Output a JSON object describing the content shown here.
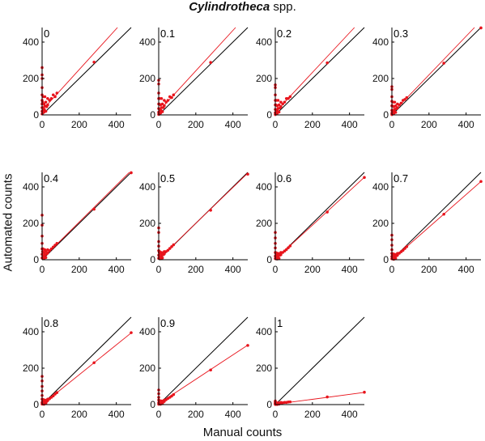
{
  "figure": {
    "title_genus": "Cylindrotheca",
    "title_rest": " spp.",
    "xlabel": "Manual counts",
    "ylabel": "Automated counts"
  },
  "colors": {
    "fit": "#e8141c",
    "points": "#e8141c",
    "identity": "#000000",
    "axes": "#000000"
  },
  "chart_data": {
    "type": "scatter",
    "xlim": [
      0,
      480
    ],
    "ylim": [
      0,
      480
    ],
    "xticks": [
      0,
      200,
      400
    ],
    "yticks": [
      0,
      200,
      400
    ],
    "grid": false,
    "identity_line": true,
    "panels": [
      {
        "label": "0",
        "fit_slope": 1.12,
        "fit_intercept": 25,
        "points": [
          [
            0,
            260
          ],
          [
            0,
            220
          ],
          [
            0,
            200
          ],
          [
            0,
            150
          ],
          [
            0,
            110
          ],
          [
            0,
            80
          ],
          [
            0,
            60
          ],
          [
            0,
            40
          ],
          [
            0,
            20
          ],
          [
            0,
            5
          ],
          [
            3,
            70
          ],
          [
            5,
            100
          ],
          [
            5,
            40
          ],
          [
            8,
            25
          ],
          [
            10,
            15
          ],
          [
            10,
            60
          ],
          [
            12,
            30
          ],
          [
            15,
            50
          ],
          [
            15,
            100
          ],
          [
            20,
            20
          ],
          [
            20,
            70
          ],
          [
            25,
            45
          ],
          [
            30,
            55
          ],
          [
            30,
            90
          ],
          [
            40,
            80
          ],
          [
            50,
            90
          ],
          [
            60,
            110
          ],
          [
            70,
            100
          ],
          [
            80,
            120
          ],
          [
            280,
            290
          ]
        ]
      },
      {
        "label": "0.1",
        "fit_slope": 1.11,
        "fit_intercept": 20,
        "points": [
          [
            0,
            190
          ],
          [
            0,
            170
          ],
          [
            0,
            120
          ],
          [
            0,
            90
          ],
          [
            0,
            60
          ],
          [
            0,
            35
          ],
          [
            0,
            15
          ],
          [
            0,
            3
          ],
          [
            3,
            60
          ],
          [
            5,
            90
          ],
          [
            5,
            30
          ],
          [
            8,
            20
          ],
          [
            10,
            10
          ],
          [
            10,
            55
          ],
          [
            12,
            25
          ],
          [
            15,
            40
          ],
          [
            15,
            90
          ],
          [
            20,
            18
          ],
          [
            20,
            60
          ],
          [
            25,
            40
          ],
          [
            30,
            50
          ],
          [
            30,
            80
          ],
          [
            40,
            70
          ],
          [
            50,
            80
          ],
          [
            60,
            100
          ],
          [
            70,
            95
          ],
          [
            80,
            110
          ],
          [
            280,
            288
          ]
        ]
      },
      {
        "label": "0.2",
        "fit_slope": 1.09,
        "fit_intercept": 15,
        "points": [
          [
            0,
            165
          ],
          [
            0,
            150
          ],
          [
            0,
            110
          ],
          [
            0,
            80
          ],
          [
            0,
            55
          ],
          [
            0,
            30
          ],
          [
            0,
            12
          ],
          [
            0,
            2
          ],
          [
            3,
            55
          ],
          [
            5,
            80
          ],
          [
            5,
            28
          ],
          [
            8,
            18
          ],
          [
            10,
            9
          ],
          [
            10,
            50
          ],
          [
            12,
            22
          ],
          [
            15,
            35
          ],
          [
            15,
            80
          ],
          [
            20,
            16
          ],
          [
            20,
            55
          ],
          [
            25,
            38
          ],
          [
            30,
            45
          ],
          [
            30,
            70
          ],
          [
            40,
            60
          ],
          [
            50,
            70
          ],
          [
            60,
            90
          ],
          [
            70,
            90
          ],
          [
            80,
            100
          ],
          [
            280,
            286
          ]
        ]
      },
      {
        "label": "0.3",
        "fit_slope": 1.06,
        "fit_intercept": 8,
        "points": [
          [
            0,
            155
          ],
          [
            0,
            140
          ],
          [
            0,
            100
          ],
          [
            0,
            75
          ],
          [
            0,
            50
          ],
          [
            0,
            25
          ],
          [
            0,
            10
          ],
          [
            0,
            2
          ],
          [
            3,
            50
          ],
          [
            5,
            70
          ],
          [
            5,
            25
          ],
          [
            8,
            15
          ],
          [
            10,
            8
          ],
          [
            10,
            45
          ],
          [
            12,
            20
          ],
          [
            15,
            30
          ],
          [
            15,
            70
          ],
          [
            20,
            14
          ],
          [
            20,
            50
          ],
          [
            25,
            35
          ],
          [
            30,
            40
          ],
          [
            30,
            60
          ],
          [
            40,
            55
          ],
          [
            50,
            65
          ],
          [
            60,
            80
          ],
          [
            70,
            85
          ],
          [
            80,
            95
          ],
          [
            280,
            284
          ],
          [
            480,
            478
          ]
        ]
      },
      {
        "label": "0.4",
        "fit_slope": 1.01,
        "fit_intercept": 5,
        "points": [
          [
            0,
            245
          ],
          [
            0,
            190
          ],
          [
            0,
            130
          ],
          [
            0,
            90
          ],
          [
            0,
            60
          ],
          [
            0,
            30
          ],
          [
            0,
            10
          ],
          [
            3,
            45
          ],
          [
            5,
            60
          ],
          [
            5,
            20
          ],
          [
            8,
            12
          ],
          [
            10,
            6
          ],
          [
            10,
            40
          ],
          [
            12,
            18
          ],
          [
            15,
            28
          ],
          [
            15,
            55
          ],
          [
            20,
            12
          ],
          [
            20,
            45
          ],
          [
            25,
            32
          ],
          [
            30,
            38
          ],
          [
            30,
            55
          ],
          [
            40,
            50
          ],
          [
            50,
            60
          ],
          [
            60,
            70
          ],
          [
            70,
            80
          ],
          [
            80,
            90
          ],
          [
            280,
            278
          ],
          [
            480,
            478
          ]
        ]
      },
      {
        "label": "0.5",
        "fit_slope": 0.985,
        "fit_intercept": 3,
        "points": [
          [
            0,
            175
          ],
          [
            0,
            150
          ],
          [
            0,
            100
          ],
          [
            0,
            75
          ],
          [
            0,
            50
          ],
          [
            0,
            25
          ],
          [
            0,
            8
          ],
          [
            3,
            40
          ],
          [
            5,
            45
          ],
          [
            5,
            18
          ],
          [
            8,
            10
          ],
          [
            10,
            5
          ],
          [
            10,
            35
          ],
          [
            12,
            15
          ],
          [
            15,
            25
          ],
          [
            15,
            40
          ],
          [
            20,
            10
          ],
          [
            20,
            35
          ],
          [
            25,
            28
          ],
          [
            30,
            32
          ],
          [
            30,
            45
          ],
          [
            40,
            45
          ],
          [
            50,
            52
          ],
          [
            60,
            62
          ],
          [
            70,
            72
          ],
          [
            80,
            82
          ],
          [
            280,
            272
          ],
          [
            480,
            470
          ]
        ]
      },
      {
        "label": "0.6",
        "fit_slope": 0.94,
        "fit_intercept": 2,
        "points": [
          [
            0,
            150
          ],
          [
            0,
            120
          ],
          [
            0,
            90
          ],
          [
            0,
            65
          ],
          [
            0,
            40
          ],
          [
            0,
            20
          ],
          [
            0,
            6
          ],
          [
            3,
            35
          ],
          [
            5,
            38
          ],
          [
            5,
            15
          ],
          [
            8,
            8
          ],
          [
            10,
            4
          ],
          [
            10,
            30
          ],
          [
            12,
            12
          ],
          [
            15,
            22
          ],
          [
            15,
            35
          ],
          [
            20,
            8
          ],
          [
            20,
            30
          ],
          [
            25,
            25
          ],
          [
            30,
            28
          ],
          [
            30,
            40
          ],
          [
            40,
            40
          ],
          [
            50,
            48
          ],
          [
            60,
            56
          ],
          [
            70,
            66
          ],
          [
            80,
            76
          ],
          [
            280,
            262
          ],
          [
            480,
            452
          ]
        ]
      },
      {
        "label": "0.7",
        "fit_slope": 0.895,
        "fit_intercept": 0,
        "points": [
          [
            0,
            135
          ],
          [
            0,
            110
          ],
          [
            0,
            80
          ],
          [
            0,
            55
          ],
          [
            0,
            35
          ],
          [
            0,
            18
          ],
          [
            0,
            5
          ],
          [
            3,
            30
          ],
          [
            5,
            33
          ],
          [
            5,
            12
          ],
          [
            8,
            7
          ],
          [
            10,
            3
          ],
          [
            10,
            26
          ],
          [
            12,
            10
          ],
          [
            15,
            19
          ],
          [
            15,
            30
          ],
          [
            20,
            7
          ],
          [
            20,
            26
          ],
          [
            25,
            22
          ],
          [
            30,
            25
          ],
          [
            30,
            35
          ],
          [
            40,
            36
          ],
          [
            50,
            44
          ],
          [
            60,
            52
          ],
          [
            70,
            62
          ],
          [
            80,
            72
          ],
          [
            280,
            250
          ],
          [
            480,
            430
          ]
        ]
      },
      {
        "label": "0.8",
        "fit_slope": 0.82,
        "fit_intercept": 0,
        "points": [
          [
            0,
            155
          ],
          [
            0,
            130
          ],
          [
            0,
            100
          ],
          [
            0,
            75
          ],
          [
            0,
            50
          ],
          [
            0,
            30
          ],
          [
            0,
            12
          ],
          [
            0,
            3
          ],
          [
            3,
            25
          ],
          [
            5,
            28
          ],
          [
            5,
            10
          ],
          [
            8,
            6
          ],
          [
            10,
            2
          ],
          [
            10,
            22
          ],
          [
            12,
            8
          ],
          [
            15,
            16
          ],
          [
            15,
            25
          ],
          [
            20,
            6
          ],
          [
            20,
            22
          ],
          [
            25,
            18
          ],
          [
            30,
            22
          ],
          [
            30,
            30
          ],
          [
            40,
            32
          ],
          [
            50,
            40
          ],
          [
            60,
            48
          ],
          [
            70,
            58
          ],
          [
            80,
            66
          ],
          [
            280,
            230
          ],
          [
            480,
            395
          ]
        ]
      },
      {
        "label": "0.9",
        "fit_slope": 0.67,
        "fit_intercept": 5,
        "points": [
          [
            0,
            80
          ],
          [
            0,
            60
          ],
          [
            0,
            40
          ],
          [
            0,
            25
          ],
          [
            0,
            10
          ],
          [
            0,
            2
          ],
          [
            3,
            20
          ],
          [
            5,
            22
          ],
          [
            5,
            8
          ],
          [
            8,
            5
          ],
          [
            10,
            2
          ],
          [
            10,
            18
          ],
          [
            12,
            6
          ],
          [
            15,
            12
          ],
          [
            15,
            20
          ],
          [
            20,
            5
          ],
          [
            20,
            18
          ],
          [
            25,
            15
          ],
          [
            30,
            18
          ],
          [
            30,
            25
          ],
          [
            40,
            27
          ],
          [
            50,
            34
          ],
          [
            60,
            40
          ],
          [
            70,
            47
          ],
          [
            80,
            55
          ],
          [
            280,
            190
          ],
          [
            480,
            325
          ]
        ]
      },
      {
        "label": "1",
        "fit_slope": 0.135,
        "fit_intercept": 2,
        "points": [
          [
            0,
            20
          ],
          [
            0,
            15
          ],
          [
            0,
            10
          ],
          [
            0,
            6
          ],
          [
            0,
            3
          ],
          [
            0,
            1
          ],
          [
            3,
            8
          ],
          [
            5,
            10
          ],
          [
            5,
            4
          ],
          [
            8,
            3
          ],
          [
            10,
            1
          ],
          [
            10,
            8
          ],
          [
            12,
            3
          ],
          [
            15,
            6
          ],
          [
            15,
            10
          ],
          [
            20,
            3
          ],
          [
            20,
            8
          ],
          [
            25,
            7
          ],
          [
            30,
            8
          ],
          [
            30,
            12
          ],
          [
            40,
            10
          ],
          [
            50,
            12
          ],
          [
            60,
            12
          ],
          [
            70,
            14
          ],
          [
            80,
            15
          ],
          [
            280,
            42
          ],
          [
            480,
            68
          ]
        ]
      }
    ]
  }
}
